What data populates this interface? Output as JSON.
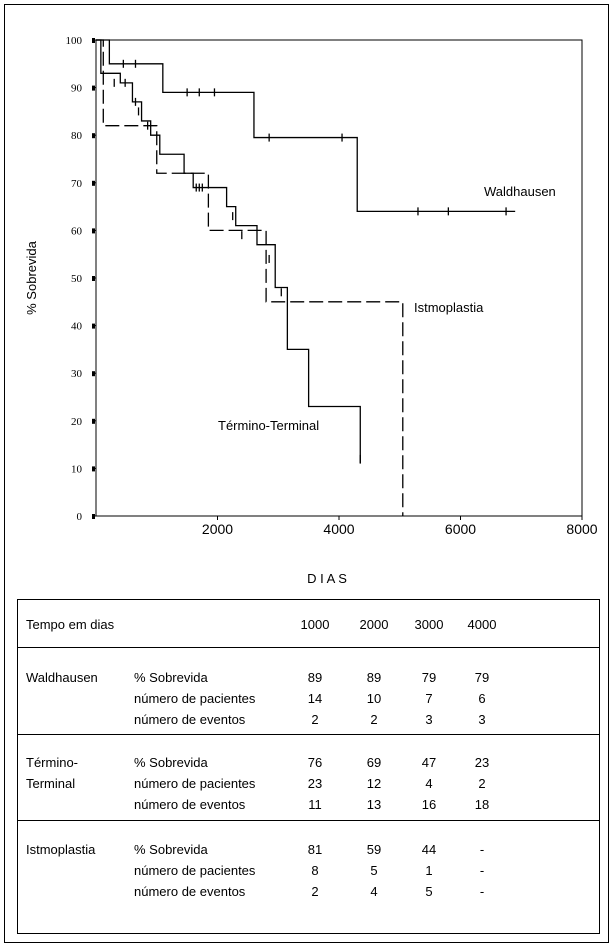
{
  "chart_data": {
    "type": "line",
    "ylabel": "% Sobrevida",
    "xlabel": "D I A S",
    "xlim": [
      0,
      8000
    ],
    "ylim": [
      0,
      100
    ],
    "x_ticks": [
      "2000",
      "4000",
      "6000",
      "8000"
    ],
    "x_tick_values": [
      2000,
      4000,
      6000,
      8000
    ],
    "y_ticks": [
      "0",
      "10",
      "20",
      "30",
      "40",
      "50",
      "60",
      "70",
      "80",
      "90",
      "100"
    ],
    "y_tick_values": [
      0,
      10,
      20,
      30,
      40,
      50,
      60,
      70,
      80,
      90,
      100
    ],
    "grid": false,
    "series": [
      {
        "name": "Waldhausen",
        "dash": false,
        "steps": [
          [
            0,
            100
          ],
          [
            220,
            95
          ],
          [
            1100,
            89
          ],
          [
            2600,
            79.5
          ],
          [
            4300,
            64
          ],
          [
            6900,
            64
          ]
        ],
        "censored": [
          [
            450,
            95
          ],
          [
            650,
            95
          ],
          [
            1500,
            89
          ],
          [
            1700,
            89
          ],
          [
            1950,
            89
          ],
          [
            2850,
            79.5
          ],
          [
            4050,
            79.5
          ],
          [
            5300,
            64
          ],
          [
            5800,
            64
          ],
          [
            6750,
            64
          ]
        ]
      },
      {
        "name": "Término-Terminal",
        "dash": false,
        "steps": [
          [
            0,
            100
          ],
          [
            80,
            93
          ],
          [
            400,
            91
          ],
          [
            600,
            87
          ],
          [
            750,
            83
          ],
          [
            900,
            80
          ],
          [
            1050,
            76
          ],
          [
            1450,
            72
          ],
          [
            1600,
            69
          ],
          [
            1800,
            69
          ],
          [
            2150,
            65
          ],
          [
            2300,
            61
          ],
          [
            2650,
            57
          ],
          [
            2950,
            48
          ],
          [
            3150,
            35
          ],
          [
            3500,
            23
          ],
          [
            4350,
            11
          ]
        ],
        "censored": [
          [
            300,
            91
          ],
          [
            480,
            91
          ],
          [
            650,
            87
          ],
          [
            700,
            85
          ],
          [
            850,
            82
          ],
          [
            1650,
            69
          ],
          [
            1700,
            69
          ],
          [
            1750,
            69
          ],
          [
            2250,
            63
          ],
          [
            2400,
            59
          ],
          [
            2850,
            54
          ],
          [
            3050,
            47
          ],
          [
            4350,
            12
          ]
        ]
      },
      {
        "name": "Istmoplastia",
        "dash": true,
        "steps": [
          [
            0,
            100
          ],
          [
            120,
            82
          ],
          [
            1000,
            72
          ],
          [
            1850,
            60
          ],
          [
            2800,
            45
          ],
          [
            5050,
            0
          ]
        ],
        "censored": []
      }
    ]
  },
  "table": {
    "header": {
      "label": "Tempo em dias",
      "times": [
        "1000",
        "2000",
        "3000",
        "4000"
      ]
    },
    "groups": [
      {
        "name_lines": [
          "Waldhausen"
        ],
        "rows": [
          {
            "label": "% Sobrevida",
            "values": [
              "89",
              "89",
              "79",
              "79"
            ]
          },
          {
            "label": "número de pacientes",
            "values": [
              "14",
              "10",
              "7",
              "6"
            ]
          },
          {
            "label": "número de eventos",
            "values": [
              "2",
              "2",
              "3",
              "3"
            ]
          }
        ]
      },
      {
        "name_lines": [
          "Término-",
          "Terminal"
        ],
        "rows": [
          {
            "label": "% Sobrevida",
            "values": [
              "76",
              "69",
              "47",
              "23"
            ]
          },
          {
            "label": "número de pacientes",
            "values": [
              "23",
              "12",
              "4",
              "2"
            ]
          },
          {
            "label": "número de eventos",
            "values": [
              "11",
              "13",
              "16",
              "18"
            ]
          }
        ]
      },
      {
        "name_lines": [
          "Istmoplastia"
        ],
        "rows": [
          {
            "label": "% Sobrevida",
            "values": [
              "81",
              "59",
              "44",
              "-"
            ]
          },
          {
            "label": "número de pacientes",
            "values": [
              "8",
              "5",
              "1",
              "-"
            ]
          },
          {
            "label": "número de eventos",
            "values": [
              "2",
              "4",
              "5",
              "-"
            ]
          }
        ]
      }
    ]
  }
}
